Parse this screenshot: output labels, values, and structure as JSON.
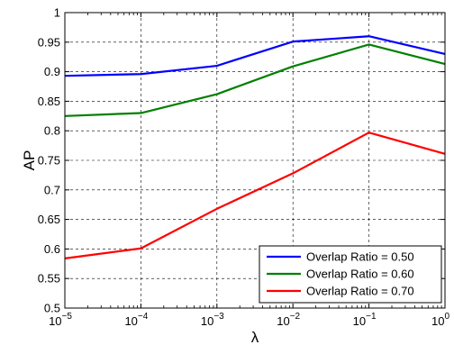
{
  "chart_data": {
    "type": "line",
    "title": "",
    "xlabel": "λ",
    "ylabel": "AP",
    "x_scale": "log",
    "x": [
      1e-05,
      0.0001,
      0.001,
      0.01,
      0.1,
      1
    ],
    "xlim": [
      1e-05,
      1
    ],
    "ylim": [
      0.5,
      1
    ],
    "x_ticks": [
      {
        "base": "10",
        "exp": "−5"
      },
      {
        "base": "10",
        "exp": "−4"
      },
      {
        "base": "10",
        "exp": "−3"
      },
      {
        "base": "10",
        "exp": "−2"
      },
      {
        "base": "10",
        "exp": "−1"
      },
      {
        "base": "10",
        "exp": "0"
      }
    ],
    "y_ticks": [
      "0.5",
      "0.55",
      "0.6",
      "0.65",
      "0.7",
      "0.75",
      "0.8",
      "0.85",
      "0.9",
      "0.95",
      "1"
    ],
    "grid": true,
    "legend_position": "bottom-right",
    "series": [
      {
        "name": "Overlap Ratio = 0.50",
        "color": "#0000ff",
        "values": [
          0.893,
          0.896,
          0.91,
          0.951,
          0.96,
          0.93
        ]
      },
      {
        "name": "Overlap Ratio = 0.60",
        "color": "#008000",
        "values": [
          0.825,
          0.83,
          0.862,
          0.909,
          0.946,
          0.913
        ]
      },
      {
        "name": "Overlap Ratio = 0.70",
        "color": "#ff0000",
        "values": [
          0.584,
          0.601,
          0.668,
          0.728,
          0.797,
          0.761
        ]
      }
    ]
  }
}
